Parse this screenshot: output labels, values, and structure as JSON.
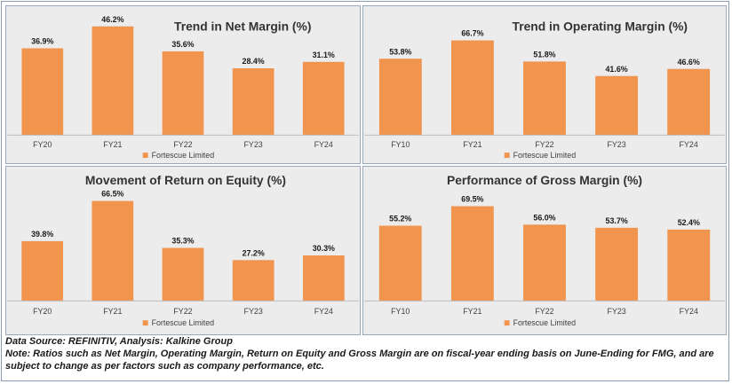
{
  "colors": {
    "bar": "#f0944e",
    "axis": "#bfbfbf",
    "panel_bg": "#ececec"
  },
  "chart_data": [
    {
      "type": "bar",
      "title": "Trend in Net Margin (%)",
      "categories": [
        "FY20",
        "FY21",
        "FY22",
        "FY23",
        "FY24"
      ],
      "series": [
        {
          "name": "Fortescue Limited",
          "values": [
            36.9,
            46.2,
            35.6,
            28.4,
            31.1
          ]
        }
      ],
      "value_labels": [
        "36.9%",
        "46.2%",
        "35.6%",
        "28.4%",
        "31.1%"
      ],
      "ylim": [
        0,
        46.2
      ],
      "legend": "bottom"
    },
    {
      "type": "bar",
      "title": "Trend in Operating Margin (%)",
      "categories": [
        "FY10",
        "FY21",
        "FY22",
        "FY23",
        "FY24"
      ],
      "series": [
        {
          "name": "Fortescue Limited",
          "values": [
            53.8,
            66.7,
            51.8,
            41.6,
            46.6
          ]
        }
      ],
      "value_labels": [
        "53.8%",
        "66.7%",
        "51.8%",
        "41.6%",
        "46.6%"
      ],
      "ylim": [
        0,
        66.7
      ],
      "legend": "bottom"
    },
    {
      "type": "bar",
      "title": "Movement of Return on Equity (%)",
      "categories": [
        "FY20",
        "FY21",
        "FY22",
        "FY23",
        "FY24"
      ],
      "series": [
        {
          "name": "Fortescue Limited",
          "values": [
            39.8,
            66.5,
            35.3,
            27.2,
            30.3
          ]
        }
      ],
      "value_labels": [
        "39.8%",
        "66.5%",
        "35.3%",
        "27.2%",
        "30.3%"
      ],
      "ylim": [
        0,
        66.5
      ],
      "legend": "bottom"
    },
    {
      "type": "bar",
      "title": "Performance of Gross Margin (%)",
      "categories": [
        "FY10",
        "FY21",
        "FY22",
        "FY23",
        "FY24"
      ],
      "series": [
        {
          "name": "Fortescue Limited",
          "values": [
            55.2,
            69.5,
            56.0,
            53.7,
            52.4
          ]
        }
      ],
      "value_labels": [
        "55.2%",
        "69.5%",
        "56.0%",
        "53.7%",
        "52.4%"
      ],
      "ylim": [
        0,
        69.5
      ],
      "legend": "bottom"
    }
  ],
  "notes": {
    "source": "Data Source: REFINITIV, Analysis: Kalkine Group",
    "note": "Note: Ratios such as Net Margin, Operating Margin, Return on Equity and Gross Margin are on fiscal-year ending basis on June-Ending for FMG, and are subject to change as per factors such as company performance, etc."
  }
}
